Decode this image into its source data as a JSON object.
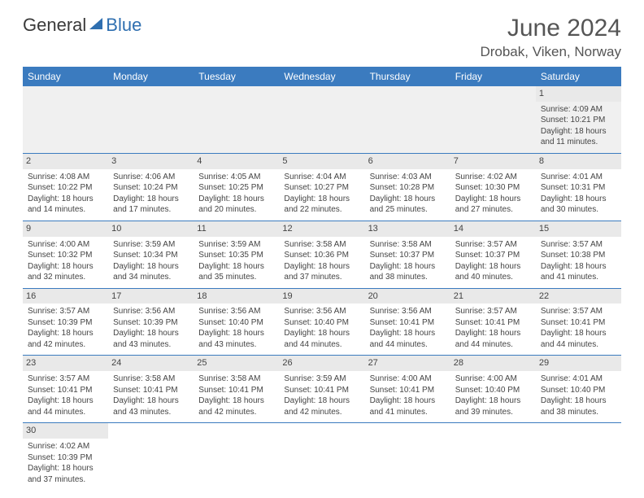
{
  "logo": {
    "text1": "General",
    "text2": "Blue",
    "color1": "#3a3a3a",
    "color2": "#2f6fb0",
    "sail_color": "#2f6fb0"
  },
  "header": {
    "month_title": "June 2024",
    "location": "Drobak, Viken, Norway"
  },
  "styling": {
    "header_bg": "#3b7bbf",
    "header_fg": "#ffffff",
    "row_border": "#3b7bbf",
    "daynum_bg": "#e9e9e9",
    "body_fontsize": 10,
    "header_fontsize": 12,
    "title_fontsize": 30,
    "location_fontsize": 17
  },
  "day_names": [
    "Sunday",
    "Monday",
    "Tuesday",
    "Wednesday",
    "Thursday",
    "Friday",
    "Saturday"
  ],
  "weeks": [
    [
      null,
      null,
      null,
      null,
      null,
      null,
      {
        "n": "1",
        "sr": "Sunrise: 4:09 AM",
        "ss": "Sunset: 10:21 PM",
        "dl": "Daylight: 18 hours and 11 minutes."
      }
    ],
    [
      {
        "n": "2",
        "sr": "Sunrise: 4:08 AM",
        "ss": "Sunset: 10:22 PM",
        "dl": "Daylight: 18 hours and 14 minutes."
      },
      {
        "n": "3",
        "sr": "Sunrise: 4:06 AM",
        "ss": "Sunset: 10:24 PM",
        "dl": "Daylight: 18 hours and 17 minutes."
      },
      {
        "n": "4",
        "sr": "Sunrise: 4:05 AM",
        "ss": "Sunset: 10:25 PM",
        "dl": "Daylight: 18 hours and 20 minutes."
      },
      {
        "n": "5",
        "sr": "Sunrise: 4:04 AM",
        "ss": "Sunset: 10:27 PM",
        "dl": "Daylight: 18 hours and 22 minutes."
      },
      {
        "n": "6",
        "sr": "Sunrise: 4:03 AM",
        "ss": "Sunset: 10:28 PM",
        "dl": "Daylight: 18 hours and 25 minutes."
      },
      {
        "n": "7",
        "sr": "Sunrise: 4:02 AM",
        "ss": "Sunset: 10:30 PM",
        "dl": "Daylight: 18 hours and 27 minutes."
      },
      {
        "n": "8",
        "sr": "Sunrise: 4:01 AM",
        "ss": "Sunset: 10:31 PM",
        "dl": "Daylight: 18 hours and 30 minutes."
      }
    ],
    [
      {
        "n": "9",
        "sr": "Sunrise: 4:00 AM",
        "ss": "Sunset: 10:32 PM",
        "dl": "Daylight: 18 hours and 32 minutes."
      },
      {
        "n": "10",
        "sr": "Sunrise: 3:59 AM",
        "ss": "Sunset: 10:34 PM",
        "dl": "Daylight: 18 hours and 34 minutes."
      },
      {
        "n": "11",
        "sr": "Sunrise: 3:59 AM",
        "ss": "Sunset: 10:35 PM",
        "dl": "Daylight: 18 hours and 35 minutes."
      },
      {
        "n": "12",
        "sr": "Sunrise: 3:58 AM",
        "ss": "Sunset: 10:36 PM",
        "dl": "Daylight: 18 hours and 37 minutes."
      },
      {
        "n": "13",
        "sr": "Sunrise: 3:58 AM",
        "ss": "Sunset: 10:37 PM",
        "dl": "Daylight: 18 hours and 38 minutes."
      },
      {
        "n": "14",
        "sr": "Sunrise: 3:57 AM",
        "ss": "Sunset: 10:37 PM",
        "dl": "Daylight: 18 hours and 40 minutes."
      },
      {
        "n": "15",
        "sr": "Sunrise: 3:57 AM",
        "ss": "Sunset: 10:38 PM",
        "dl": "Daylight: 18 hours and 41 minutes."
      }
    ],
    [
      {
        "n": "16",
        "sr": "Sunrise: 3:57 AM",
        "ss": "Sunset: 10:39 PM",
        "dl": "Daylight: 18 hours and 42 minutes."
      },
      {
        "n": "17",
        "sr": "Sunrise: 3:56 AM",
        "ss": "Sunset: 10:39 PM",
        "dl": "Daylight: 18 hours and 43 minutes."
      },
      {
        "n": "18",
        "sr": "Sunrise: 3:56 AM",
        "ss": "Sunset: 10:40 PM",
        "dl": "Daylight: 18 hours and 43 minutes."
      },
      {
        "n": "19",
        "sr": "Sunrise: 3:56 AM",
        "ss": "Sunset: 10:40 PM",
        "dl": "Daylight: 18 hours and 44 minutes."
      },
      {
        "n": "20",
        "sr": "Sunrise: 3:56 AM",
        "ss": "Sunset: 10:41 PM",
        "dl": "Daylight: 18 hours and 44 minutes."
      },
      {
        "n": "21",
        "sr": "Sunrise: 3:57 AM",
        "ss": "Sunset: 10:41 PM",
        "dl": "Daylight: 18 hours and 44 minutes."
      },
      {
        "n": "22",
        "sr": "Sunrise: 3:57 AM",
        "ss": "Sunset: 10:41 PM",
        "dl": "Daylight: 18 hours and 44 minutes."
      }
    ],
    [
      {
        "n": "23",
        "sr": "Sunrise: 3:57 AM",
        "ss": "Sunset: 10:41 PM",
        "dl": "Daylight: 18 hours and 44 minutes."
      },
      {
        "n": "24",
        "sr": "Sunrise: 3:58 AM",
        "ss": "Sunset: 10:41 PM",
        "dl": "Daylight: 18 hours and 43 minutes."
      },
      {
        "n": "25",
        "sr": "Sunrise: 3:58 AM",
        "ss": "Sunset: 10:41 PM",
        "dl": "Daylight: 18 hours and 42 minutes."
      },
      {
        "n": "26",
        "sr": "Sunrise: 3:59 AM",
        "ss": "Sunset: 10:41 PM",
        "dl": "Daylight: 18 hours and 42 minutes."
      },
      {
        "n": "27",
        "sr": "Sunrise: 4:00 AM",
        "ss": "Sunset: 10:41 PM",
        "dl": "Daylight: 18 hours and 41 minutes."
      },
      {
        "n": "28",
        "sr": "Sunrise: 4:00 AM",
        "ss": "Sunset: 10:40 PM",
        "dl": "Daylight: 18 hours and 39 minutes."
      },
      {
        "n": "29",
        "sr": "Sunrise: 4:01 AM",
        "ss": "Sunset: 10:40 PM",
        "dl": "Daylight: 18 hours and 38 minutes."
      }
    ],
    [
      {
        "n": "30",
        "sr": "Sunrise: 4:02 AM",
        "ss": "Sunset: 10:39 PM",
        "dl": "Daylight: 18 hours and 37 minutes."
      },
      null,
      null,
      null,
      null,
      null,
      null
    ]
  ]
}
